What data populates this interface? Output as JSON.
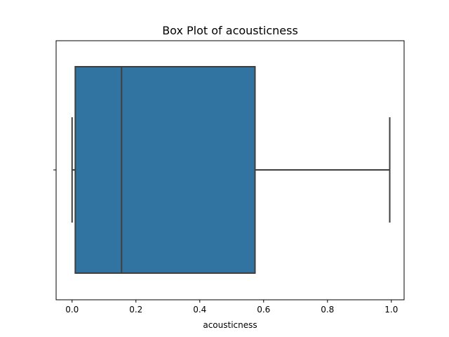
{
  "chart_data": {
    "type": "box",
    "title": "Box Plot of acousticness",
    "xlabel": "acousticness",
    "ylabel": "",
    "orientation": "horizontal",
    "xlim": [
      -0.05,
      1.04
    ],
    "xticks": [
      0.0,
      0.2,
      0.4,
      0.6,
      0.8,
      1.0
    ],
    "xtick_labels": [
      "0.0",
      "0.2",
      "0.4",
      "0.6",
      "0.8",
      "1.0"
    ],
    "series": [
      {
        "whisker_low": 0.0,
        "q1": 0.01,
        "median": 0.155,
        "q3": 0.573,
        "whisker_high": 0.995
      }
    ],
    "box_color": "#3274a1",
    "line_color": "#3f3f3f",
    "grid": false
  }
}
